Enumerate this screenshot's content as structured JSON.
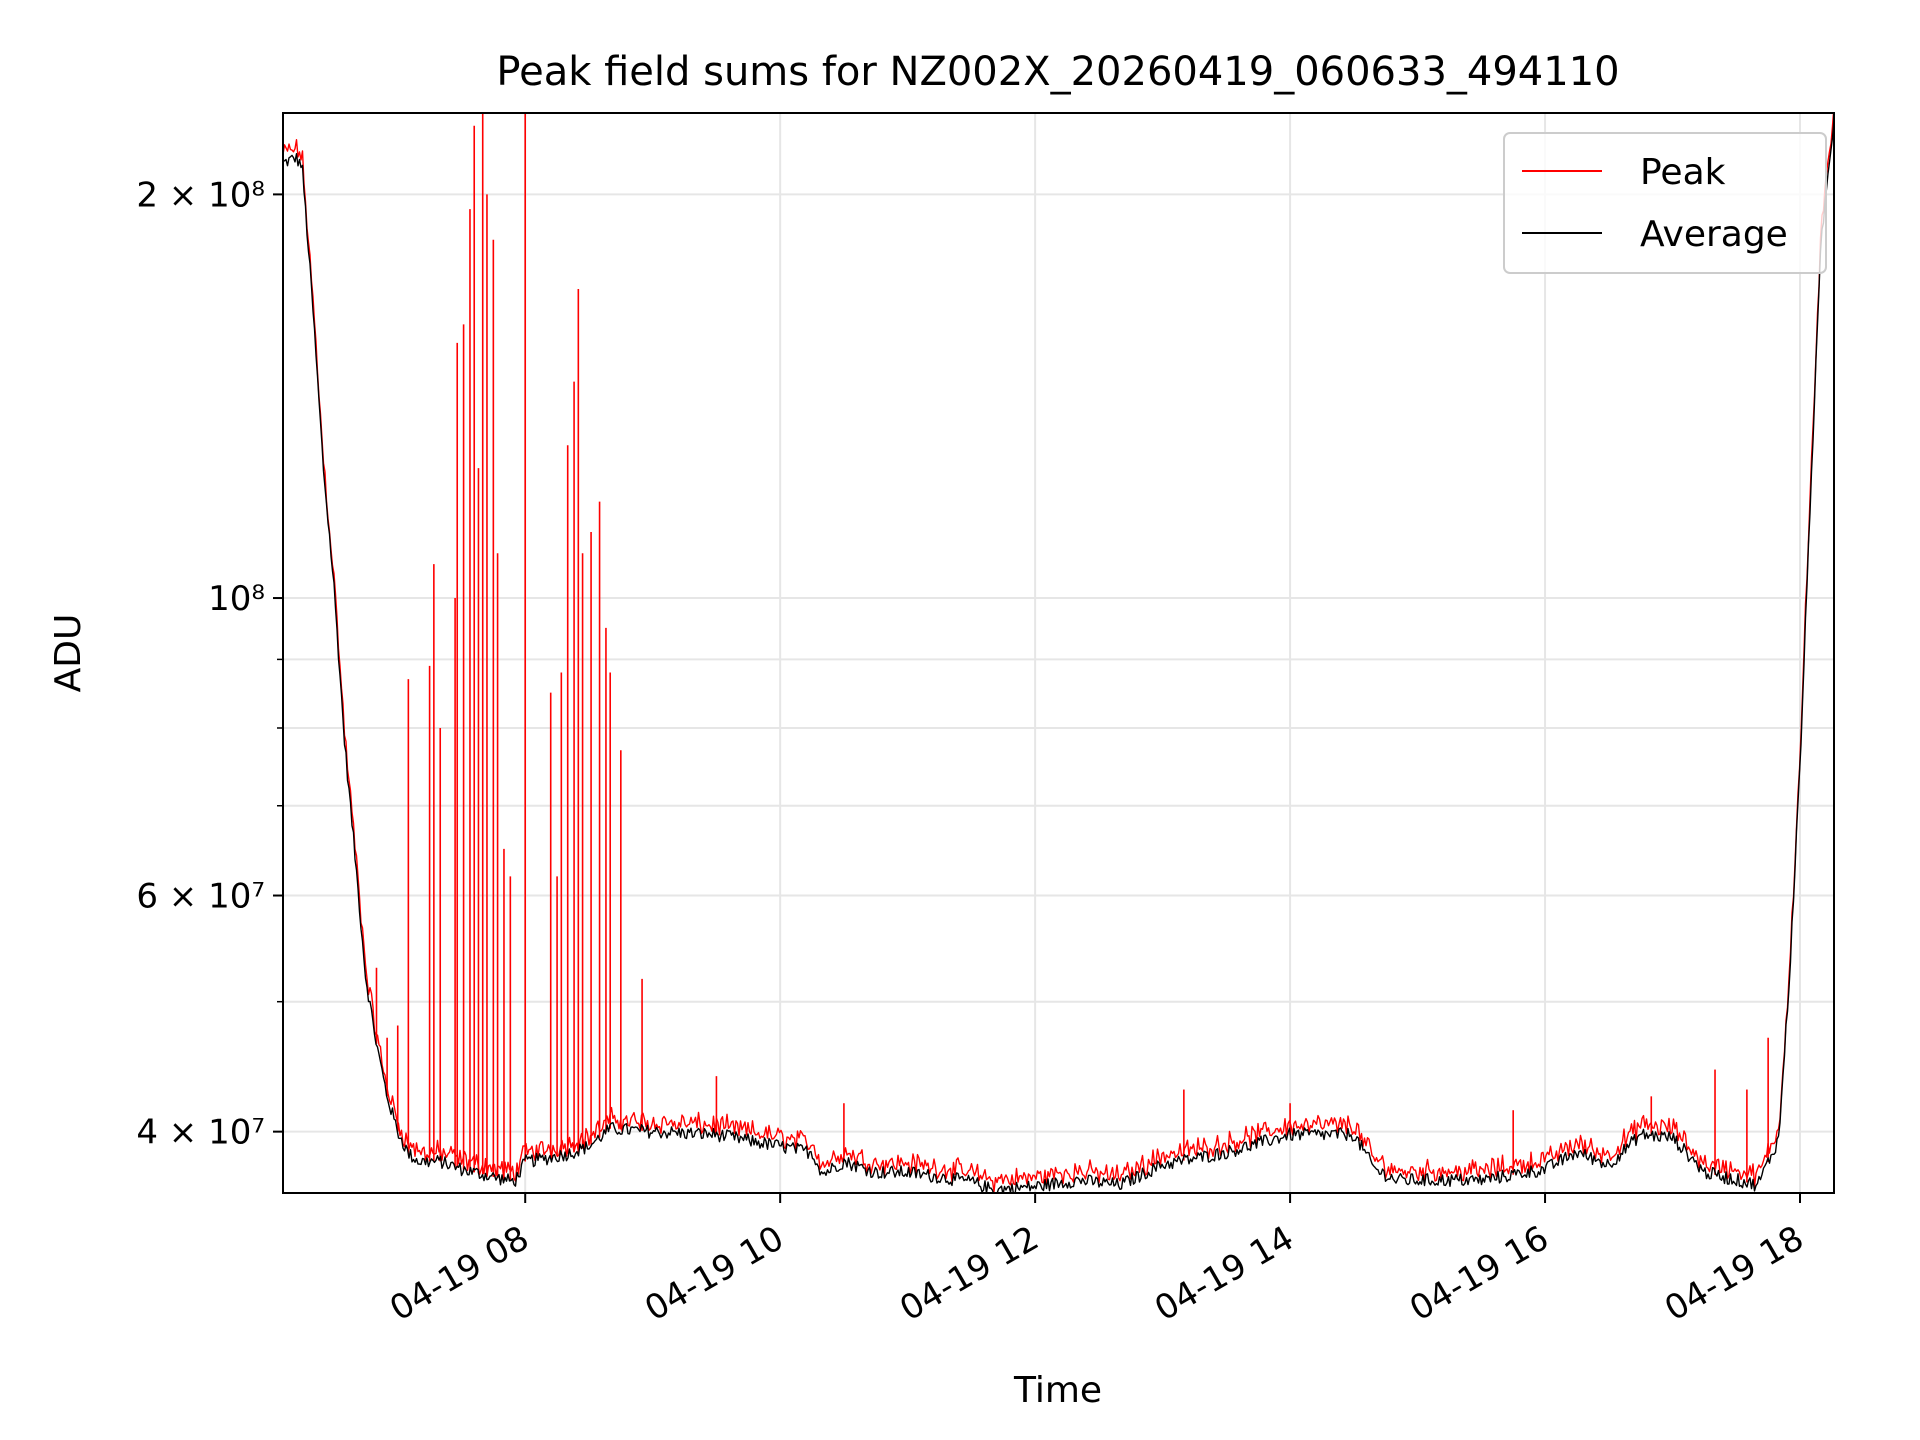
{
  "chart_data": {
    "type": "line",
    "title": "Peak field sums for NZ002X_20260419_060633_494110",
    "xlabel": "Time",
    "ylabel": "ADU",
    "y_scale": "log",
    "ylim": [
      36000000,
      230000000
    ],
    "xlim": [
      "2026-04-19 06:06",
      "2026-04-19 18:16"
    ],
    "grid": true,
    "legend_position": "top-right",
    "x_ticks": [
      {
        "x": "2026-04-19 08:00",
        "label": "04-19 08"
      },
      {
        "x": "2026-04-19 10:00",
        "label": "04-19 10"
      },
      {
        "x": "2026-04-19 12:00",
        "label": "04-19 12"
      },
      {
        "x": "2026-04-19 14:00",
        "label": "04-19 14"
      },
      {
        "x": "2026-04-19 16:00",
        "label": "04-19 16"
      },
      {
        "x": "2026-04-19 18:00",
        "label": "04-19 18"
      }
    ],
    "y_major_ticks": [
      {
        "y": 40000000,
        "label": "4 × 10⁷"
      },
      {
        "y": 60000000,
        "label": "6 × 10⁷"
      },
      {
        "y": 100000000,
        "label": "10⁸"
      },
      {
        "y": 200000000,
        "label": "2 × 10⁸"
      }
    ],
    "y_minor_ticks": [
      50000000,
      70000000,
      80000000,
      90000000
    ],
    "series": [
      {
        "name": "Average",
        "color": "#000000",
        "points": [
          [
            "2026-04-19 06:06",
            211000000
          ],
          [
            "2026-04-19 06:12",
            213000000
          ],
          [
            "2026-04-19 06:15",
            210000000
          ],
          [
            "2026-04-19 06:20",
            165000000
          ],
          [
            "2026-04-19 06:25",
            125000000
          ],
          [
            "2026-04-19 06:30",
            102000000
          ],
          [
            "2026-04-19 06:35",
            78000000
          ],
          [
            "2026-04-19 06:40",
            64000000
          ],
          [
            "2026-04-19 06:45",
            52000000
          ],
          [
            "2026-04-19 06:50",
            46500000
          ],
          [
            "2026-04-19 06:55",
            42500000
          ],
          [
            "2026-04-19 07:00",
            40000000
          ],
          [
            "2026-04-19 07:05",
            38500000
          ],
          [
            "2026-04-19 07:10",
            38000000
          ],
          [
            "2026-04-19 07:20",
            38000000
          ],
          [
            "2026-04-19 07:30",
            37500000
          ],
          [
            "2026-04-19 07:45",
            37000000
          ],
          [
            "2026-04-19 07:55",
            36700000
          ],
          [
            "2026-04-19 08:00",
            38000000
          ],
          [
            "2026-04-19 08:10",
            38200000
          ],
          [
            "2026-04-19 08:20",
            38500000
          ],
          [
            "2026-04-19 08:30",
            39000000
          ],
          [
            "2026-04-19 08:40",
            40200000
          ],
          [
            "2026-04-19 09:00",
            40000000
          ],
          [
            "2026-04-19 09:30",
            39800000
          ],
          [
            "2026-04-19 10:00",
            39000000
          ],
          [
            "2026-04-19 10:15",
            38600000
          ],
          [
            "2026-04-19 10:20",
            37200000
          ],
          [
            "2026-04-19 10:30",
            38000000
          ],
          [
            "2026-04-19 10:45",
            37300000
          ],
          [
            "2026-04-19 11:00",
            37300000
          ],
          [
            "2026-04-19 11:30",
            36700000
          ],
          [
            "2026-04-19 11:40",
            36200000
          ],
          [
            "2026-04-19 12:00",
            36400000
          ],
          [
            "2026-04-19 12:20",
            36800000
          ],
          [
            "2026-04-19 12:40",
            36500000
          ],
          [
            "2026-04-19 13:00",
            37800000
          ],
          [
            "2026-04-19 13:30",
            38600000
          ],
          [
            "2026-04-19 14:00",
            39800000
          ],
          [
            "2026-04-19 14:30",
            39800000
          ],
          [
            "2026-04-19 14:40",
            37500000
          ],
          [
            "2026-04-19 14:50",
            36800000
          ],
          [
            "2026-04-19 15:30",
            36800000
          ],
          [
            "2026-04-19 16:00",
            37500000
          ],
          [
            "2026-04-19 16:15",
            38600000
          ],
          [
            "2026-04-19 16:30",
            37800000
          ],
          [
            "2026-04-19 16:45",
            39800000
          ],
          [
            "2026-04-19 17:00",
            39600000
          ],
          [
            "2026-04-19 17:15",
            37300000
          ],
          [
            "2026-04-19 17:40",
            36500000
          ],
          [
            "2026-04-19 17:50",
            39500000
          ],
          [
            "2026-04-19 17:55",
            52000000
          ],
          [
            "2026-04-19 18:00",
            75000000
          ],
          [
            "2026-04-19 18:05",
            120000000
          ],
          [
            "2026-04-19 18:10",
            185000000
          ],
          [
            "2026-04-19 18:16",
            228000000
          ]
        ]
      },
      {
        "name": "Peak",
        "color": "#ff0000",
        "spikes": [
          [
            "2026-04-19 06:50",
            53000000
          ],
          [
            "2026-04-19 06:55",
            47000000
          ],
          [
            "2026-04-19 07:00",
            48000000
          ],
          [
            "2026-04-19 07:05",
            87000000
          ],
          [
            "2026-04-19 07:15",
            89000000
          ],
          [
            "2026-04-19 07:17",
            106000000
          ],
          [
            "2026-04-19 07:20",
            80000000
          ],
          [
            "2026-04-19 07:27",
            100000000
          ],
          [
            "2026-04-19 07:28",
            155000000
          ],
          [
            "2026-04-19 07:31",
            160000000
          ],
          [
            "2026-04-19 07:34",
            195000000
          ],
          [
            "2026-04-19 07:36",
            225000000
          ],
          [
            "2026-04-19 07:38",
            125000000
          ],
          [
            "2026-04-19 07:40",
            230000000
          ],
          [
            "2026-04-19 07:42",
            200000000
          ],
          [
            "2026-04-19 07:45",
            185000000
          ],
          [
            "2026-04-19 07:47",
            108000000
          ],
          [
            "2026-04-19 07:50",
            65000000
          ],
          [
            "2026-04-19 07:53",
            62000000
          ],
          [
            "2026-04-19 08:00",
            230000000
          ],
          [
            "2026-04-19 08:12",
            85000000
          ],
          [
            "2026-04-19 08:15",
            62000000
          ],
          [
            "2026-04-19 08:17",
            88000000
          ],
          [
            "2026-04-19 08:20",
            130000000
          ],
          [
            "2026-04-19 08:23",
            145000000
          ],
          [
            "2026-04-19 08:25",
            170000000
          ],
          [
            "2026-04-19 08:27",
            108000000
          ],
          [
            "2026-04-19 08:31",
            112000000
          ],
          [
            "2026-04-19 08:35",
            118000000
          ],
          [
            "2026-04-19 08:38",
            95000000
          ],
          [
            "2026-04-19 08:40",
            88000000
          ],
          [
            "2026-04-19 08:45",
            77000000
          ],
          [
            "2026-04-19 08:55",
            52000000
          ],
          [
            "2026-04-19 09:30",
            44000000
          ],
          [
            "2026-04-19 10:30",
            42000000
          ],
          [
            "2026-04-19 13:10",
            43000000
          ],
          [
            "2026-04-19 14:00",
            42000000
          ],
          [
            "2026-04-19 15:45",
            41500000
          ],
          [
            "2026-04-19 16:50",
            42500000
          ],
          [
            "2026-04-19 17:20",
            44500000
          ],
          [
            "2026-04-19 17:35",
            43000000
          ],
          [
            "2026-04-19 17:45",
            47000000
          ]
        ]
      }
    ]
  }
}
